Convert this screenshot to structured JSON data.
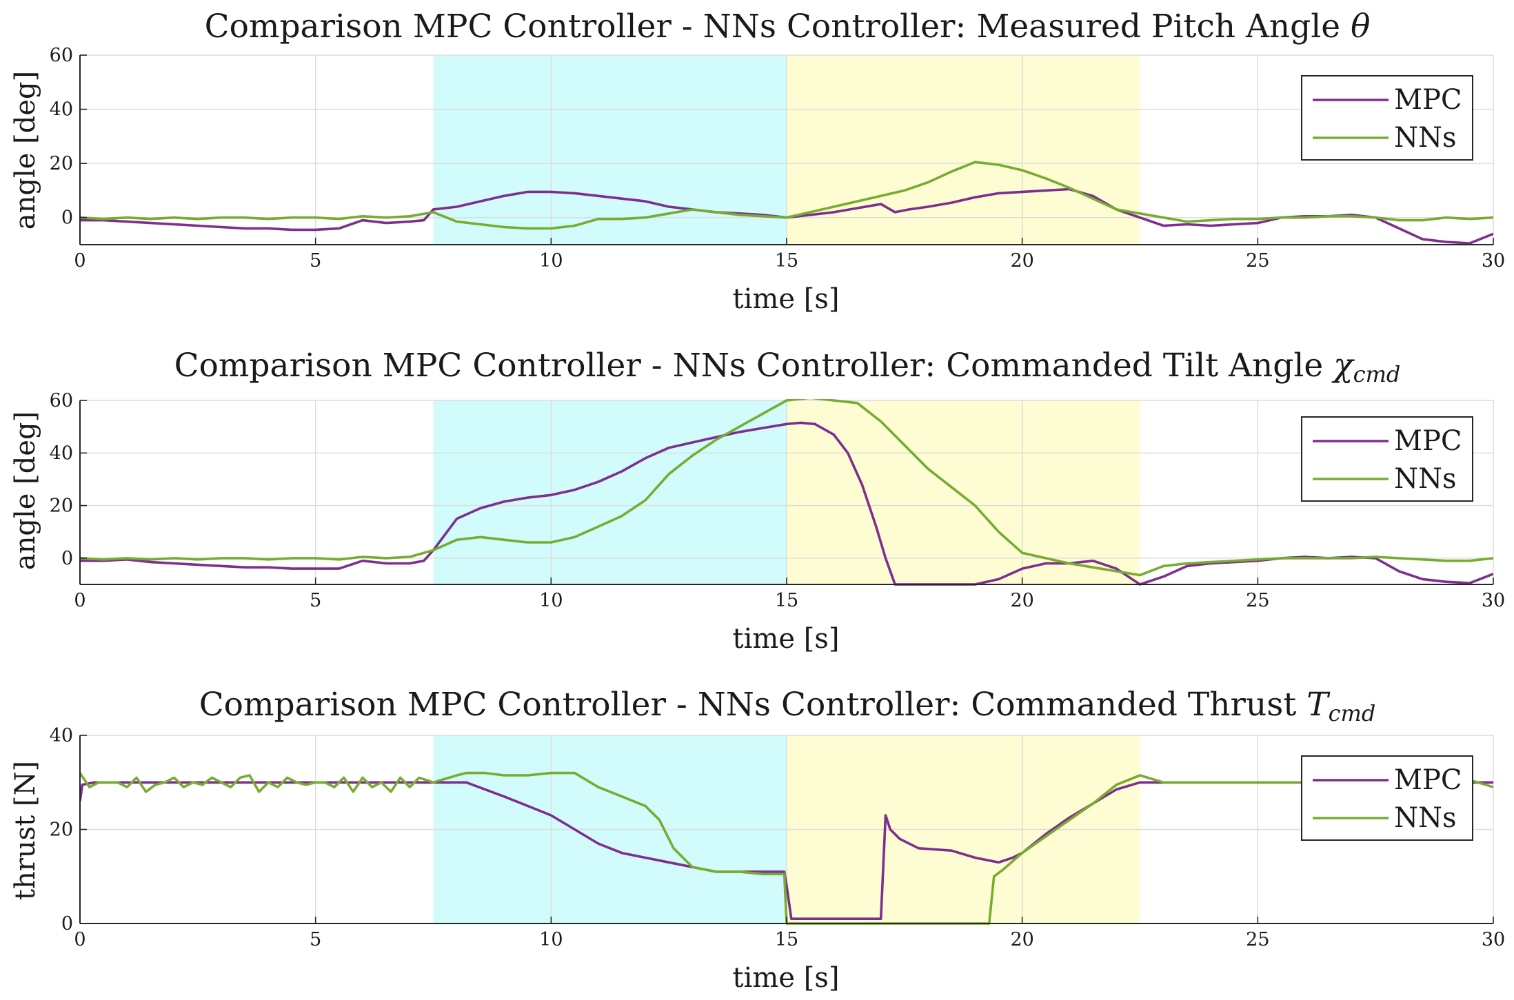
{
  "figure": {
    "subplots": [
      {
        "title": "Comparison MPC Controller - NNs Controller: Measured Pitch Angle θ"
      },
      {
        "title": "Comparison MPC Controller - NNs Controller: Commanded Tilt Angle χcmd"
      },
      {
        "title": "Comparison MPC Controller - NNs Controller: Commanded Thrust Tcmd"
      }
    ]
  },
  "colors": {
    "mpc": "#7e2f8e",
    "nns": "#77ac30",
    "region1": "#d2fbfc",
    "region2": "#fdfcd2"
  },
  "chart_data": [
    {
      "type": "line",
      "title": "Comparison MPC Controller - NNs Controller: Measured Pitch Angle θ",
      "title_main": "Comparison MPC Controller - NNs Controller: Measured Pitch Angle ",
      "title_symbol": "θ",
      "title_sub": "",
      "xlabel": "time [s]",
      "ylabel": "angle [deg]",
      "xlim": [
        0,
        30
      ],
      "ylim": [
        -10,
        60
      ],
      "xticks": [
        0,
        5,
        10,
        15,
        20,
        25,
        30
      ],
      "yticks": [
        0,
        20,
        40,
        60
      ],
      "grid": true,
      "legend_position": "top-right",
      "shaded_regions": [
        {
          "x0": 7.5,
          "x1": 15,
          "color": "cyan"
        },
        {
          "x0": 15,
          "x1": 22.5,
          "color": "yellow"
        }
      ],
      "series": [
        {
          "name": "MPC",
          "x": [
            0,
            0.5,
            1,
            1.5,
            2,
            2.5,
            3,
            3.5,
            4,
            4.5,
            5,
            5.5,
            6,
            6.5,
            7,
            7.3,
            7.5,
            8,
            8.5,
            9,
            9.5,
            10,
            10.5,
            11,
            11.5,
            12,
            12.5,
            13,
            13.5,
            14,
            14.5,
            15,
            15.5,
            16,
            16.5,
            17,
            17.3,
            17.6,
            18,
            18.5,
            19,
            19.5,
            20,
            20.5,
            21,
            21.5,
            22,
            22.5,
            23,
            23.5,
            24,
            24.5,
            25,
            25.5,
            26,
            26.5,
            27,
            27.5,
            28,
            28.5,
            29,
            29.5,
            30
          ],
          "y": [
            -1,
            -1,
            -1.5,
            -2,
            -2.5,
            -3,
            -3.5,
            -4,
            -4,
            -4.5,
            -4.5,
            -4,
            -1,
            -2,
            -1.5,
            -1,
            3,
            4,
            6,
            8,
            9.5,
            9.5,
            9,
            8,
            7,
            6,
            4,
            3,
            2,
            1.5,
            1,
            0,
            1,
            2,
            3.5,
            5,
            2,
            3,
            4,
            5.5,
            7.5,
            9,
            9.5,
            10,
            10.5,
            8,
            3,
            0,
            -3,
            -2.5,
            -3,
            -2.5,
            -2,
            0,
            0.5,
            0.5,
            1,
            0,
            -4,
            -8,
            -9,
            -9.5,
            -6
          ]
        },
        {
          "name": "NNs",
          "x": [
            0,
            0.5,
            1,
            1.5,
            2,
            2.5,
            3,
            3.5,
            4,
            4.5,
            5,
            5.5,
            6,
            6.5,
            7,
            7.5,
            8,
            8.5,
            9,
            9.5,
            10,
            10.5,
            11,
            11.5,
            12,
            12.5,
            13,
            13.5,
            14,
            14.5,
            15,
            15.5,
            16,
            16.5,
            17,
            17.5,
            18,
            18.5,
            19,
            19.5,
            20,
            20.5,
            21,
            21.5,
            22,
            22.5,
            23,
            23.5,
            24,
            24.5,
            25,
            25.5,
            26,
            26.5,
            27,
            27.5,
            28,
            28.5,
            29,
            29.5,
            30
          ],
          "y": [
            0,
            -0.5,
            0,
            -0.5,
            0,
            -0.5,
            0,
            0,
            -0.5,
            0,
            0,
            -0.5,
            0.5,
            0,
            0.5,
            2,
            -1.5,
            -2.5,
            -3.5,
            -4,
            -4,
            -3,
            -0.5,
            -0.5,
            0,
            1.5,
            3,
            2,
            1,
            0.5,
            0,
            2,
            4,
            6,
            8,
            10,
            13,
            17,
            20.5,
            19.5,
            17.5,
            14.5,
            11,
            7,
            3,
            1.5,
            0,
            -1.5,
            -1,
            -0.5,
            -0.5,
            0,
            0,
            0.5,
            0.5,
            0,
            -1,
            -1,
            0,
            -0.5,
            0
          ]
        }
      ]
    },
    {
      "type": "line",
      "title": "Comparison MPC Controller - NNs Controller: Commanded Tilt Angle χcmd",
      "title_main": "Comparison MPC Controller - NNs Controller: Commanded Tilt Angle ",
      "title_symbol": "χ",
      "title_sub": "cmd",
      "xlabel": "time [s]",
      "ylabel": "angle [deg]",
      "xlim": [
        0,
        30
      ],
      "ylim": [
        -10,
        60
      ],
      "xticks": [
        0,
        5,
        10,
        15,
        20,
        25,
        30
      ],
      "yticks": [
        0,
        20,
        40,
        60
      ],
      "grid": true,
      "legend_position": "top-right",
      "shaded_regions": [
        {
          "x0": 7.5,
          "x1": 15,
          "color": "cyan"
        },
        {
          "x0": 15,
          "x1": 22.5,
          "color": "yellow"
        }
      ],
      "series": [
        {
          "name": "MPC",
          "x": [
            0,
            0.5,
            1,
            1.5,
            2,
            2.5,
            3,
            3.5,
            4,
            4.5,
            5,
            5.5,
            6,
            6.5,
            7,
            7.3,
            7.5,
            8,
            8.5,
            9,
            9.5,
            10,
            10.5,
            11,
            11.5,
            12,
            12.5,
            13,
            13.5,
            14,
            14.5,
            15,
            15.3,
            15.6,
            16,
            16.3,
            16.6,
            16.9,
            17.1,
            17.3,
            18,
            19,
            19.5,
            20,
            20.5,
            21,
            21.5,
            22,
            22.5,
            23,
            23.5,
            24,
            24.5,
            25,
            25.5,
            26,
            26.5,
            27,
            27.5,
            28,
            28.5,
            29,
            29.5,
            30
          ],
          "y": [
            -1,
            -1,
            -0.5,
            -1.5,
            -2,
            -2.5,
            -3,
            -3.5,
            -3.5,
            -4,
            -4,
            -4,
            -1,
            -2,
            -2,
            -1,
            3,
            15,
            19,
            21.5,
            23,
            24,
            26,
            29,
            33,
            38,
            42,
            44,
            46,
            48,
            49.5,
            51,
            51.5,
            51,
            47,
            40,
            28,
            12,
            0,
            -10,
            -10,
            -10,
            -8,
            -4,
            -2,
            -2,
            -1,
            -4,
            -10,
            -7,
            -3,
            -2,
            -1.5,
            -1,
            0,
            0.5,
            0,
            0.5,
            0,
            -5,
            -8,
            -9,
            -9.5,
            -6
          ]
        },
        {
          "name": "NNs",
          "x": [
            0,
            0.5,
            1,
            1.5,
            2,
            2.5,
            3,
            3.5,
            4,
            4.5,
            5,
            5.5,
            6,
            6.5,
            7,
            7.5,
            8,
            8.5,
            9,
            9.5,
            10,
            10.5,
            11,
            11.5,
            12,
            12.5,
            13,
            13.5,
            14,
            14.5,
            15,
            15.5,
            16,
            16.5,
            17,
            17.5,
            18,
            18.5,
            19,
            19.5,
            20,
            20.5,
            21,
            21.5,
            22,
            22.5,
            23,
            23.5,
            24,
            24.5,
            25,
            25.5,
            26,
            26.5,
            27,
            27.5,
            28,
            28.5,
            29,
            29.5,
            30
          ],
          "y": [
            0,
            -0.5,
            0,
            -0.5,
            0,
            -0.5,
            0,
            0,
            -0.5,
            0,
            0,
            -0.5,
            0.5,
            0,
            0.5,
            3,
            7,
            8,
            7,
            6,
            6,
            8,
            12,
            16,
            22,
            32,
            39,
            45,
            50,
            55,
            60,
            61,
            60,
            59,
            52,
            43,
            34,
            27,
            20,
            10,
            2,
            0,
            -2,
            -3.5,
            -5,
            -6.5,
            -3,
            -2,
            -1.5,
            -1,
            -0.5,
            0,
            0,
            0,
            0,
            0.5,
            0,
            -0.5,
            -1,
            -1,
            0
          ]
        }
      ]
    },
    {
      "type": "line",
      "title": "Comparison MPC Controller - NNs Controller: Commanded Thrust Tcmd",
      "title_main": "Comparison MPC Controller - NNs Controller: Commanded Thrust ",
      "title_symbol": "T",
      "title_sub": "cmd",
      "xlabel": "time [s]",
      "ylabel": "thrust [N]",
      "xlim": [
        0,
        30
      ],
      "ylim": [
        0,
        40
      ],
      "xticks": [
        0,
        5,
        10,
        15,
        20,
        25,
        30
      ],
      "yticks": [
        0,
        20,
        40
      ],
      "grid": true,
      "legend_position": "top-right",
      "shaded_regions": [
        {
          "x0": 7.5,
          "x1": 15,
          "color": "cyan"
        },
        {
          "x0": 15,
          "x1": 22.5,
          "color": "yellow"
        }
      ],
      "series": [
        {
          "name": "MPC",
          "x": [
            0,
            0.05,
            0.3,
            7.5,
            8.2,
            9,
            10,
            10.5,
            11,
            11.5,
            12,
            12.5,
            13,
            13.5,
            14,
            14.5,
            14.95,
            15,
            15.1,
            15.2,
            16,
            17,
            17.1,
            17.2,
            17.4,
            17.8,
            18.5,
            19,
            19.5,
            19.8,
            20,
            20.5,
            21,
            21.5,
            22,
            22.5,
            23,
            24,
            25,
            26,
            27,
            28,
            29,
            30
          ],
          "y": [
            26,
            29.5,
            30,
            30,
            30,
            27,
            23,
            20,
            17,
            15,
            14,
            13,
            12,
            11,
            11,
            11,
            11,
            8,
            1,
            1,
            1,
            1,
            23,
            20,
            18,
            16,
            15.5,
            14,
            13,
            14,
            15,
            19,
            22.5,
            25.5,
            28.5,
            30,
            30,
            30,
            30,
            30,
            30,
            30,
            30,
            30
          ]
        },
        {
          "name": "NNs",
          "x": [
            0,
            0.2,
            0.4,
            0.6,
            0.8,
            1,
            1.2,
            1.4,
            1.6,
            1.8,
            2,
            2.2,
            2.4,
            2.6,
            2.8,
            3,
            3.2,
            3.4,
            3.6,
            3.8,
            4,
            4.2,
            4.4,
            4.6,
            4.8,
            5,
            5.2,
            5.4,
            5.6,
            5.8,
            6,
            6.2,
            6.4,
            6.6,
            6.8,
            7,
            7.2,
            7.5,
            8,
            8.2,
            8.6,
            9,
            9.5,
            10,
            10.5,
            11,
            11.5,
            12,
            12.3,
            12.6,
            13,
            13.5,
            14,
            14.5,
            14.95,
            15,
            15.1,
            16,
            17,
            18,
            19,
            19.3,
            19.4,
            19.6,
            20,
            20.5,
            21,
            21.5,
            22,
            22.5,
            23,
            24,
            25,
            26,
            27,
            28,
            29,
            29.5,
            30
          ],
          "y": [
            32,
            29,
            30,
            30,
            30,
            29,
            31,
            28,
            29.5,
            30,
            31,
            29,
            30,
            29.5,
            31,
            30,
            29,
            31,
            31.5,
            28,
            30,
            29,
            31,
            30,
            29.5,
            30,
            30,
            29,
            31,
            28,
            31,
            29,
            30,
            28,
            31,
            29,
            31,
            30,
            31.5,
            32,
            32,
            31.5,
            31.5,
            32,
            32,
            29,
            27,
            25,
            22,
            16,
            12,
            11,
            11,
            10.5,
            10.5,
            0,
            0,
            0,
            0,
            0,
            0,
            0,
            10,
            11.5,
            15,
            18.5,
            22,
            25.5,
            29.5,
            31.5,
            30,
            30,
            30,
            30,
            30,
            30,
            29.5,
            30.5,
            29
          ]
        }
      ]
    }
  ]
}
